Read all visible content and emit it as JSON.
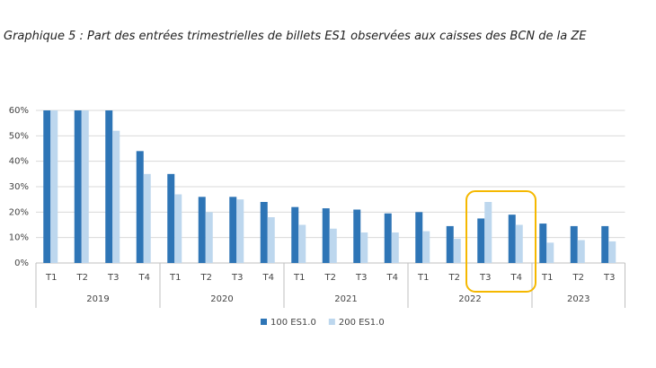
{
  "chart_data": {
    "type": "bar",
    "title": "Graphique 5 : Part des entrées trimestrielles de billets ES1 observées aux caisses des BCN de la ZE",
    "groups": [
      {
        "label": "2019",
        "categories": [
          "T1",
          "T2",
          "T3",
          "T4"
        ]
      },
      {
        "label": "2020",
        "categories": [
          "T1",
          "T2",
          "T3",
          "T4"
        ]
      },
      {
        "label": "2021",
        "categories": [
          "T1",
          "T2",
          "T3",
          "T4"
        ]
      },
      {
        "label": "2022",
        "categories": [
          "T1",
          "T2",
          "T3",
          "T4"
        ]
      },
      {
        "label": "2023",
        "categories": [
          "T1",
          "T2",
          "T3"
        ]
      }
    ],
    "series": [
      {
        "name": "100 ES1.0",
        "color": "#2e75b6",
        "values": [
          60,
          60,
          60,
          44,
          35,
          26,
          26,
          24,
          22,
          21.5,
          21,
          19.5,
          20,
          14.5,
          17.5,
          19,
          15.5,
          14.5,
          14.5
        ]
      },
      {
        "name": "200 ES1.0",
        "color": "#bdd7ee",
        "values": [
          60,
          60,
          52,
          35,
          27,
          20,
          25,
          18,
          15,
          13.5,
          12,
          12,
          12.5,
          9.5,
          24,
          15,
          8,
          9,
          8.5
        ]
      }
    ],
    "ylim": [
      0,
      60
    ],
    "yticks": [
      {
        "value": 0,
        "label": "0%"
      },
      {
        "value": 10,
        "label": "10%"
      },
      {
        "value": 20,
        "label": "20%"
      },
      {
        "value": 30,
        "label": "30%"
      },
      {
        "value": 40,
        "label": "40%"
      },
      {
        "value": 50,
        "label": "50%"
      },
      {
        "value": 60,
        "label": "60%"
      }
    ],
    "grid": true,
    "legend": "bottom"
  }
}
